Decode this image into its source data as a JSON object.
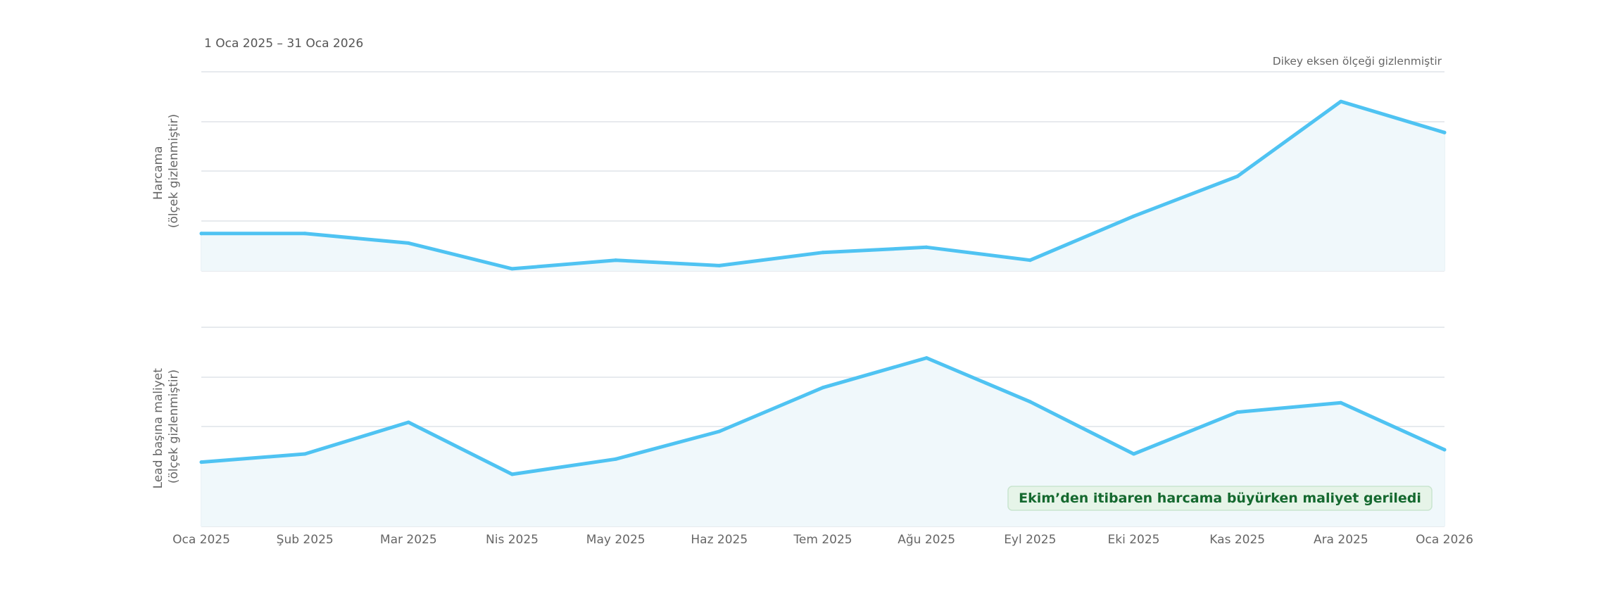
{
  "chart_data": {
    "type": "line",
    "subtitle": "1 Oca 2025 – 31 Oca 2026",
    "scale_note": "Dikey eksen ölçeği gizlenmiştir",
    "x": [
      "Oca 2025",
      "Şub 2025",
      "Mar 2025",
      "Nis 2025",
      "May 2025",
      "Haz 2025",
      "Tem 2025",
      "Ağu 2025",
      "Eyl 2025",
      "Eki 2025",
      "Kas 2025",
      "Ara 2025",
      "Oca 2026"
    ],
    "panels": [
      {
        "name": "Harcama",
        "ylabel_lines": [
          "Harcama",
          "(ölçek gizlenmiştir)"
        ],
        "values": [
          18.8,
          18.8,
          14.0,
          1.1,
          5.4,
          2.7,
          9.3,
          11.9,
          5.4,
          27.5,
          47.5,
          85.1,
          69.5
        ],
        "ylim": [
          0,
          100
        ],
        "grid": true,
        "axis_labels_hidden": true
      },
      {
        "name": "Lead başına maliyet",
        "ylabel_lines": [
          "Lead başına maliyet",
          "(ölçek gizlenmiştir)"
        ],
        "values": [
          32.3,
          36.4,
          52.3,
          26.2,
          33.8,
          47.7,
          69.7,
          84.6,
          62.6,
          36.4,
          57.4,
          62.1,
          38.5
        ],
        "ylim": [
          0,
          100
        ],
        "grid": true,
        "axis_labels_hidden": true
      }
    ],
    "annotation": "Ekim’den itibaren harcama büyürken maliyet geriledi",
    "colors": {
      "line": "#4fc3f2",
      "area": "#f0f8fb",
      "grid": "#e7eaee",
      "axis_text": "#666666",
      "annotation_bg": "#e6f4e8",
      "annotation_border": "#c9e5cf",
      "annotation_text": "#15692f"
    }
  }
}
